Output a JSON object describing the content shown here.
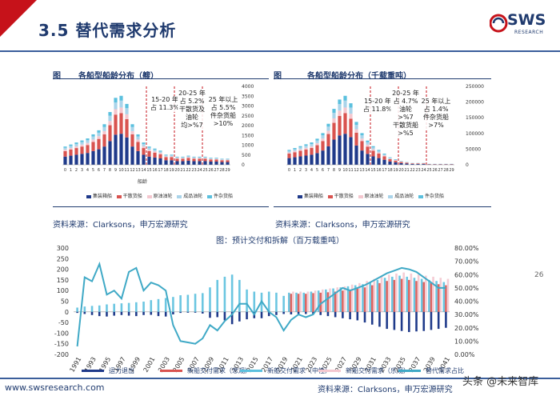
{
  "header": {
    "title": "3.5 替代需求分析",
    "logo_text": "SWS",
    "logo_sub": "RESEARCH",
    "accent_color": "#c6121a",
    "brand_color": "#1f3a6e"
  },
  "panel_left": {
    "label": "图",
    "title": "各船型船龄分布（艘）",
    "source": "资料来源：Clarksons，申万宏源研究",
    "xlabel": "船龄",
    "y_ticks": [
      "4000",
      "3500",
      "3000",
      "2500",
      "2000",
      "1500",
      "1000",
      "500",
      "0"
    ],
    "legend": [
      "集装箱船",
      "干散货船",
      "原油油轮",
      "成品油轮",
      "件杂货船"
    ],
    "annotations": [
      {
        "text": "15-20 年\n占 11.3%"
      },
      {
        "text": "20-25 年\n占 5.2%\n干散货及\n油轮\n均>%7"
      },
      {
        "text": "25 年以上\n占 5.5%\n件杂货船\n>10%"
      }
    ]
  },
  "panel_right": {
    "label": "图",
    "title": "各船型船龄分布（千载重吨）",
    "source": "资料来源：Clarksons，申万宏源研究",
    "y_ticks": [
      "250000",
      "200000",
      "150000",
      "100000",
      "50000",
      "0"
    ],
    "legend": [
      "集装箱船",
      "干散货船",
      "原油油轮",
      "成品油轮",
      "件杂货船"
    ],
    "annotations": [
      {
        "text": "15-20 年\n占 11.8%"
      },
      {
        "text": "20-25 年\n占 4.7%\n油轮\n>%7\n干散货船\n>%5"
      },
      {
        "text": "25 年以上\n占 1.4%\n件杂货船\n>7%"
      }
    ]
  },
  "chart_data": {
    "type": "bar",
    "title": "图：预计交付和拆解（百万载重吨）",
    "categories": [
      "1991",
      "1992",
      "1993",
      "1994",
      "1995",
      "1996",
      "1997",
      "1998",
      "1999",
      "2000",
      "2001",
      "2002",
      "2003",
      "2004",
      "2005",
      "2006",
      "2007",
      "2008",
      "2009",
      "2010",
      "2011",
      "2012",
      "2013",
      "2014",
      "2015",
      "2016",
      "2017",
      "2018",
      "2019",
      "2020",
      "2021",
      "2022",
      "2023",
      "2024",
      "2025",
      "2026",
      "2027",
      "2028",
      "2029",
      "2030",
      "2031",
      "2032",
      "2033",
      "2034",
      "2035",
      "2036",
      "2037",
      "2038",
      "2039",
      "2040",
      "2041"
    ],
    "x_tick_labels": [
      "1991",
      "1993",
      "1995",
      "1997",
      "1999",
      "2001",
      "2003",
      "2005",
      "2007",
      "2009",
      "2011",
      "2013",
      "2015",
      "2017",
      "2019",
      "2021",
      "2023",
      "2025",
      "2027",
      "2029",
      "2031",
      "2033",
      "2035",
      "2037",
      "2039",
      "2041"
    ],
    "ylim": [
      -200,
      300
    ],
    "y_ticks": [
      "300",
      "250",
      "200",
      "150",
      "100",
      "50",
      "0",
      "-50",
      "-100",
      "-150",
      "-200"
    ],
    "y2lim": [
      0,
      80
    ],
    "y2_ticks": [
      "80.00%",
      "70.00%",
      "60.00%",
      "50.00%",
      "40.00%",
      "30.00%",
      "20.00%",
      "10.00%",
      "0.00%"
    ],
    "series": [
      {
        "name": "运力退出",
        "kind": "bar",
        "color": "#1f3a8a",
        "values": [
          -5,
          -10,
          -15,
          -20,
          -22,
          -18,
          -15,
          -18,
          -20,
          -15,
          -14,
          -20,
          -22,
          -12,
          -5,
          -4,
          -4,
          -8,
          -28,
          -25,
          -40,
          -58,
          -45,
          -35,
          -30,
          -30,
          -20,
          -15,
          -10,
          -12,
          -10,
          -10,
          -10,
          -15,
          -20,
          -25,
          -30,
          -35,
          -40,
          -50,
          -60,
          -70,
          -80,
          -85,
          -90,
          -95,
          -92,
          -90,
          -85,
          -80,
          -75
        ]
      },
      {
        "name": "新船交付需求（悲观）",
        "kind": "bar",
        "color": "#d9534f",
        "values": [
          null,
          null,
          null,
          null,
          null,
          null,
          null,
          null,
          null,
          null,
          null,
          null,
          null,
          null,
          null,
          null,
          null,
          null,
          null,
          null,
          null,
          null,
          null,
          null,
          null,
          null,
          null,
          null,
          null,
          85,
          85,
          85,
          88,
          90,
          92,
          95,
          100,
          105,
          110,
          115,
          125,
          135,
          145,
          150,
          155,
          150,
          145,
          140,
          135,
          130,
          125
        ]
      },
      {
        "name": "新船交付需求（中性）",
        "kind": "bar",
        "color": "#5bc0de",
        "values": [
          20,
          25,
          28,
          30,
          35,
          38,
          40,
          42,
          45,
          48,
          55,
          60,
          65,
          70,
          78,
          80,
          85,
          88,
          115,
          150,
          165,
          175,
          150,
          105,
          95,
          90,
          95,
          90,
          75,
          90,
          90,
          90,
          95,
          100,
          105,
          110,
          115,
          120,
          125,
          130,
          140,
          150,
          160,
          165,
          170,
          165,
          160,
          155,
          150,
          145,
          140
        ]
      },
      {
        "name": "新船交付需求（乐观）",
        "kind": "bar",
        "color": "#f4c7cf",
        "values": [
          null,
          null,
          null,
          null,
          null,
          null,
          null,
          null,
          null,
          null,
          null,
          null,
          null,
          null,
          null,
          null,
          null,
          null,
          null,
          null,
          null,
          null,
          null,
          null,
          null,
          null,
          null,
          null,
          null,
          95,
          95,
          95,
          100,
          105,
          110,
          115,
          120,
          128,
          135,
          145,
          155,
          165,
          175,
          180,
          185,
          180,
          175,
          170,
          165,
          160,
          155
        ]
      },
      {
        "name": "替代需求占比",
        "kind": "line",
        "axis": "right",
        "color": "#3fa9c6",
        "values": [
          6,
          58,
          55,
          68,
          45,
          48,
          42,
          62,
          65,
          48,
          54,
          52,
          48,
          22,
          10,
          9,
          8,
          12,
          22,
          18,
          25,
          30,
          38,
          38,
          30,
          40,
          32,
          28,
          18,
          26,
          30,
          28,
          30,
          38,
          42,
          46,
          50,
          48,
          50,
          52,
          55,
          58,
          61,
          63,
          65,
          64,
          62,
          58,
          54,
          50,
          50
        ]
      }
    ]
  },
  "footer": {
    "url": "www.swsresearch.com",
    "source": "资料来源：Clarksons，申万宏源研究",
    "page_number": "26",
    "watermark": "头条 @未来智库"
  }
}
